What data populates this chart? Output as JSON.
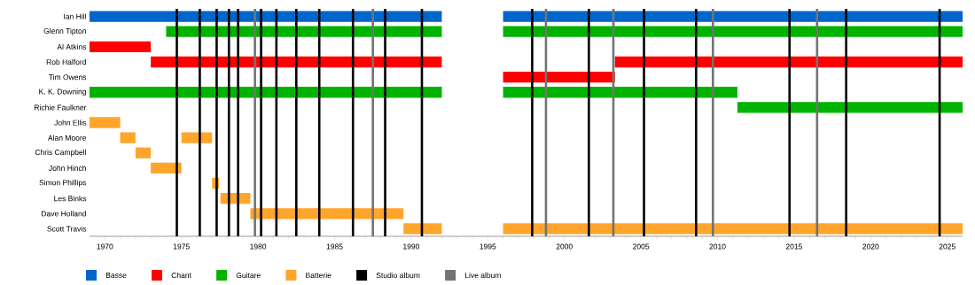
{
  "chart_data": {
    "type": "bar",
    "orientation": "horizontal",
    "legend": "bottom",
    "categories": [
      "Ian Hill",
      "Glenn Tipton",
      "Al Atkins",
      "Rob Halford",
      "Tim Owens",
      "K. K. Downing",
      "Richie Faulkner",
      "John Ellis",
      "Alan Moore",
      "Chris Campbell",
      "John Hinch",
      "Simon Phillips",
      "Les Binks",
      "Dave Holland",
      "Scott Travis"
    ],
    "series": [
      {
        "name": "Basse",
        "color": "#0066cc",
        "base": [
          1969,
          null,
          null,
          null,
          null,
          null,
          null,
          null,
          null,
          null,
          null,
          null,
          null,
          null,
          null
        ],
        "values": [
          23,
          null,
          null,
          null,
          null,
          null,
          null,
          null,
          null,
          null,
          null,
          null,
          null,
          null,
          null
        ]
      },
      {
        "color": "#0066cc",
        "base": [
          1996,
          null,
          null,
          null,
          null,
          null,
          null,
          null,
          null,
          null,
          null,
          null,
          null,
          null,
          null
        ],
        "values": [
          30,
          null,
          null,
          null,
          null,
          null,
          null,
          null,
          null,
          null,
          null,
          null,
          null,
          null,
          null
        ]
      },
      {
        "name": "Chant",
        "color": "#ff0000",
        "base": [
          null,
          null,
          1969,
          1973,
          1996,
          null,
          null,
          null,
          null,
          null,
          null,
          null,
          null,
          null,
          null
        ],
        "values": [
          null,
          null,
          4,
          19,
          7.3,
          null,
          null,
          null,
          null,
          null,
          null,
          null,
          null,
          null,
          null
        ]
      },
      {
        "color": "#ff0000",
        "base": [
          null,
          null,
          null,
          2003.3,
          null,
          null,
          null,
          null,
          null,
          null,
          null,
          null,
          null,
          null,
          null
        ],
        "values": [
          null,
          null,
          null,
          22.7,
          null,
          null,
          null,
          null,
          null,
          null,
          null,
          null,
          null,
          null,
          null
        ]
      },
      {
        "name": "Guitare",
        "color": "#00b300",
        "base": [
          null,
          1974,
          null,
          null,
          null,
          1969,
          2011.3,
          null,
          null,
          null,
          null,
          null,
          null,
          null,
          null
        ],
        "values": [
          null,
          18,
          null,
          null,
          null,
          23,
          14.7,
          null,
          null,
          null,
          null,
          null,
          null,
          null,
          null
        ]
      },
      {
        "color": "#00b300",
        "base": [
          null,
          1996,
          null,
          null,
          null,
          1996,
          null,
          null,
          null,
          null,
          null,
          null,
          null,
          null,
          null
        ],
        "values": [
          null,
          30,
          null,
          null,
          null,
          15.3,
          null,
          null,
          null,
          null,
          null,
          null,
          null,
          null,
          null
        ]
      },
      {
        "name": "Batterie",
        "color": "#ffa52c",
        "base": [
          null,
          null,
          null,
          null,
          null,
          null,
          null,
          1969,
          1971,
          1972,
          1973,
          1977,
          1977.55,
          1979.5,
          1989.5
        ],
        "values": [
          null,
          null,
          null,
          null,
          null,
          null,
          null,
          2,
          1,
          1,
          2,
          0.45,
          1.95,
          10,
          2.5
        ]
      },
      {
        "color": "#ffa52c",
        "base": [
          null,
          null,
          null,
          null,
          null,
          null,
          null,
          null,
          1975,
          null,
          null,
          null,
          null,
          null,
          1996
        ],
        "values": [
          null,
          null,
          null,
          null,
          null,
          null,
          null,
          null,
          2,
          null,
          null,
          null,
          null,
          null,
          30
        ]
      }
    ],
    "xlim": [
      1969,
      2026
    ],
    "xticks": [
      1970,
      1975,
      1980,
      1985,
      1990,
      1995,
      2000,
      2005,
      2010,
      2015,
      2020,
      2025
    ],
    "ref_lines": [
      {
        "axis": "x",
        "value": 1974.7,
        "color": "#000000",
        "label": "Studio album"
      },
      {
        "axis": "x",
        "value": 1976.2,
        "color": "#000000"
      },
      {
        "axis": "x",
        "value": 1977.3,
        "color": "#000000"
      },
      {
        "axis": "x",
        "value": 1978.1,
        "color": "#000000"
      },
      {
        "axis": "x",
        "value": 1978.7,
        "color": "#000000"
      },
      {
        "axis": "x",
        "value": 1980.2,
        "color": "#000000"
      },
      {
        "axis": "x",
        "value": 1981.2,
        "color": "#000000"
      },
      {
        "axis": "x",
        "value": 1982.5,
        "color": "#000000"
      },
      {
        "axis": "x",
        "value": 1984,
        "color": "#000000"
      },
      {
        "axis": "x",
        "value": 1986.2,
        "color": "#000000"
      },
      {
        "axis": "x",
        "value": 1988.3,
        "color": "#000000"
      },
      {
        "axis": "x",
        "value": 1990.7,
        "color": "#000000"
      },
      {
        "axis": "x",
        "value": 1997.9,
        "color": "#000000"
      },
      {
        "axis": "x",
        "value": 2001.6,
        "color": "#000000"
      },
      {
        "axis": "x",
        "value": 2005.2,
        "color": "#000000"
      },
      {
        "axis": "x",
        "value": 2008.6,
        "color": "#000000"
      },
      {
        "axis": "x",
        "value": 2014.7,
        "color": "#000000"
      },
      {
        "axis": "x",
        "value": 2018.4,
        "color": "#000000"
      },
      {
        "axis": "x",
        "value": 2024.5,
        "color": "#000000"
      },
      {
        "axis": "x",
        "value": 1979.8,
        "color": "#737373",
        "label": "Live album"
      },
      {
        "axis": "x",
        "value": 1987.5,
        "color": "#737373"
      },
      {
        "axis": "x",
        "value": 1998.8,
        "color": "#737373"
      },
      {
        "axis": "x",
        "value": 2003.2,
        "color": "#737373"
      },
      {
        "axis": "x",
        "value": 2009.7,
        "color": "#737373"
      },
      {
        "axis": "x",
        "value": 2016.5,
        "color": "#737373"
      }
    ]
  }
}
